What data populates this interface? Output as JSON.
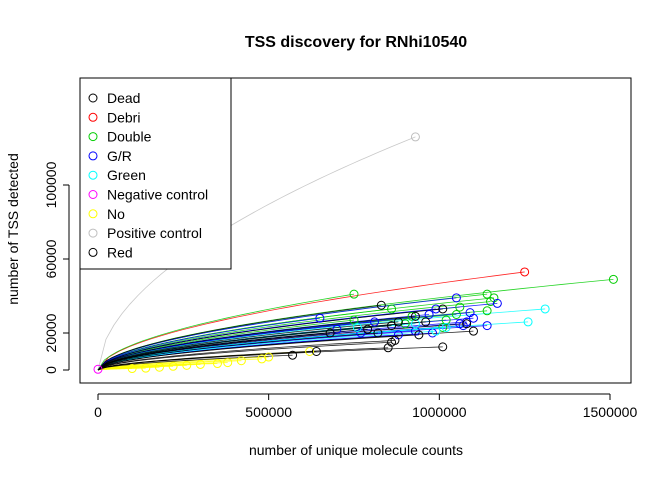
{
  "chart_data": {
    "type": "line",
    "title": "TSS discovery for RNhi10540",
    "xlabel": "number of unique molecule counts",
    "ylabel": "number of TSS detected",
    "xlim": [
      0,
      1500000
    ],
    "ylim": [
      0,
      120000
    ],
    "x_ticks": [
      0,
      500000,
      1000000,
      1500000
    ],
    "x_tick_labels": [
      "0",
      "500000",
      "1000000",
      "1500000"
    ],
    "y_ticks": [
      0,
      20000,
      60000,
      100000
    ],
    "y_tick_labels": [
      "0",
      "20000",
      "60000",
      "100000"
    ],
    "legend_position": "top-left",
    "grid": false,
    "legend": [
      {
        "label": "Dead",
        "color": "#000000"
      },
      {
        "label": "Debri",
        "color": "#ff0000"
      },
      {
        "label": "Double",
        "color": "#00cd00"
      },
      {
        "label": "G/R",
        "color": "#0000ff"
      },
      {
        "label": "Green",
        "color": "#00ffff"
      },
      {
        "label": "Negative control",
        "color": "#ff00ff"
      },
      {
        "label": "No",
        "color": "#ffff00"
      },
      {
        "label": "Positive control",
        "color": "#bebebe"
      },
      {
        "label": "Red",
        "color": "#000000"
      }
    ],
    "series": [
      {
        "name": "Positive control",
        "color": "#bebebe",
        "endpoints": [
          [
            930000,
            126000
          ]
        ]
      },
      {
        "name": "Debri",
        "color": "#ff0000",
        "endpoints": [
          [
            1250000,
            53000
          ]
        ]
      },
      {
        "name": "Double",
        "color": "#00cd00",
        "endpoints": [
          [
            1510000,
            49000
          ],
          [
            750000,
            41000
          ],
          [
            1140000,
            41000
          ],
          [
            1160000,
            39000
          ],
          [
            1150000,
            37000
          ],
          [
            860000,
            33000
          ],
          [
            1060000,
            34000
          ],
          [
            1140000,
            32000
          ],
          [
            1050000,
            30000
          ],
          [
            920000,
            29000
          ],
          [
            750000,
            27000
          ],
          [
            1020000,
            27000
          ],
          [
            900000,
            25000
          ],
          [
            1010000,
            23000
          ]
        ]
      },
      {
        "name": "G/R",
        "color": "#0000ff",
        "endpoints": [
          [
            1050000,
            39000
          ],
          [
            1170000,
            36000
          ],
          [
            990000,
            33000
          ],
          [
            1090000,
            31000
          ],
          [
            970000,
            30000
          ],
          [
            1100000,
            28000
          ],
          [
            650000,
            28000
          ],
          [
            810000,
            26000
          ],
          [
            1080000,
            26000
          ],
          [
            1060000,
            25000
          ],
          [
            1140000,
            24000
          ],
          [
            1070000,
            24000
          ],
          [
            700000,
            22000
          ],
          [
            770000,
            20000
          ],
          [
            930000,
            21000
          ],
          [
            980000,
            20000
          ],
          [
            880000,
            19000
          ]
        ]
      },
      {
        "name": "Green",
        "color": "#00ffff",
        "endpoints": [
          [
            1310000,
            33000
          ],
          [
            1260000,
            26000
          ],
          [
            930000,
            25000
          ],
          [
            990000,
            21000
          ],
          [
            1020000,
            23000
          ],
          [
            760000,
            23000
          ]
        ]
      },
      {
        "name": "Negative control",
        "color": "#ff00ff",
        "endpoints": [
          [
            0,
            400
          ]
        ]
      },
      {
        "name": "No",
        "color": "#ffff00",
        "endpoints": [
          [
            620000,
            10000
          ],
          [
            500000,
            7000
          ],
          [
            480000,
            6000
          ],
          [
            420000,
            5000
          ],
          [
            380000,
            4000
          ],
          [
            350000,
            3500
          ],
          [
            300000,
            3000
          ],
          [
            260000,
            2500
          ],
          [
            220000,
            2000
          ],
          [
            180000,
            1500
          ],
          [
            140000,
            1000
          ],
          [
            100000,
            800
          ]
        ]
      },
      {
        "name": "Red",
        "color": "#000000",
        "endpoints": [
          [
            830000,
            35000
          ],
          [
            1010000,
            33000
          ],
          [
            930000,
            29000
          ],
          [
            880000,
            26000
          ],
          [
            960000,
            26000
          ],
          [
            1080000,
            25000
          ],
          [
            860000,
            24000
          ],
          [
            790000,
            22000
          ],
          [
            820000,
            20000
          ],
          [
            680000,
            20000
          ],
          [
            1100000,
            21000
          ],
          [
            940000,
            19000
          ],
          [
            870000,
            16000
          ],
          [
            860000,
            15000
          ],
          [
            850000,
            12000
          ],
          [
            1010000,
            12500
          ],
          [
            640000,
            10000
          ],
          [
            570000,
            8000
          ]
        ]
      }
    ]
  }
}
